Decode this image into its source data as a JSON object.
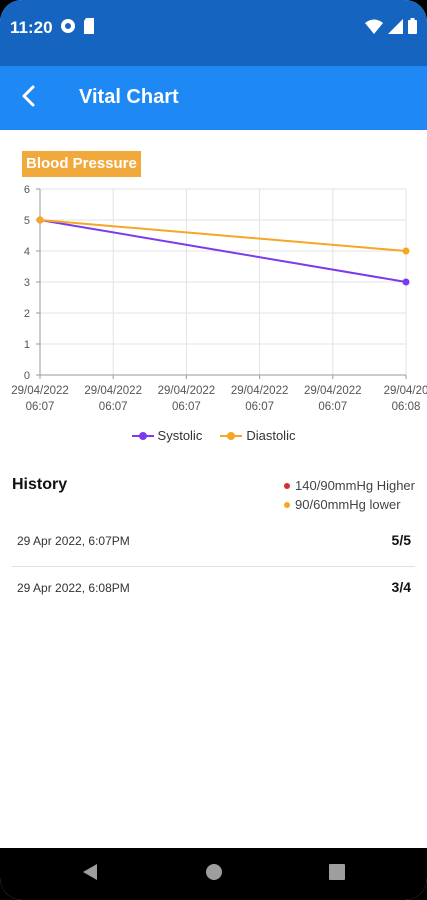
{
  "status_bar": {
    "time": "11:20",
    "icons": [
      "data-saver-icon",
      "sd-card-icon",
      "wifi-icon",
      "signal-icon",
      "battery-icon"
    ]
  },
  "app_bar": {
    "title": "Vital Chart",
    "back_icon": "back-arrow-icon"
  },
  "chart_badge": "Blood Pressure",
  "chart_data": {
    "type": "line",
    "categories": [
      "29/04/2022\n06:07",
      "29/04/2022\n06:07",
      "29/04/2022\n06:07",
      "29/04/2022\n06:07",
      "29/04/2022\n06:07",
      "29/04/20\n06:08"
    ],
    "tick_labels": [
      {
        "date": "29/04/2022",
        "time": "06:07"
      },
      {
        "date": "29/04/2022",
        "time": "06:07"
      },
      {
        "date": "29/04/2022",
        "time": "06:07"
      },
      {
        "date": "29/04/2022",
        "time": "06:07"
      },
      {
        "date": "29/04/2022",
        "time": "06:07"
      },
      {
        "date": "29/04/20",
        "time": "06:08"
      }
    ],
    "y_ticks": [
      0,
      1,
      2,
      3,
      4,
      5,
      6
    ],
    "ylim": [
      0,
      6
    ],
    "series": [
      {
        "name": "Systolic",
        "color": "#7c3aed",
        "points": [
          {
            "x": 0,
            "y": 5
          },
          {
            "x": 5,
            "y": 3
          }
        ]
      },
      {
        "name": "Diastolic",
        "color": "#f5a623",
        "points": [
          {
            "x": 0,
            "y": 5
          },
          {
            "x": 5,
            "y": 4
          }
        ]
      }
    ],
    "grid": true,
    "legend_position": "bottom-center"
  },
  "legend": {
    "systolic": "Systolic",
    "diastolic": "Diastolic"
  },
  "history": {
    "title": "History",
    "key": [
      {
        "label": "140/90mmHg Higher",
        "color": "#d32f2f"
      },
      {
        "label": "90/60mmHg lower",
        "color": "#f5a623"
      }
    ],
    "items": [
      {
        "date": "29 Apr 2022, 6:07PM",
        "value": "5/5"
      },
      {
        "date": "29 Apr 2022, 6:08PM",
        "value": "3/4"
      }
    ]
  },
  "nav_bar": {
    "back": "nav-back-icon",
    "home": "nav-home-icon",
    "recents": "nav-recents-icon"
  }
}
